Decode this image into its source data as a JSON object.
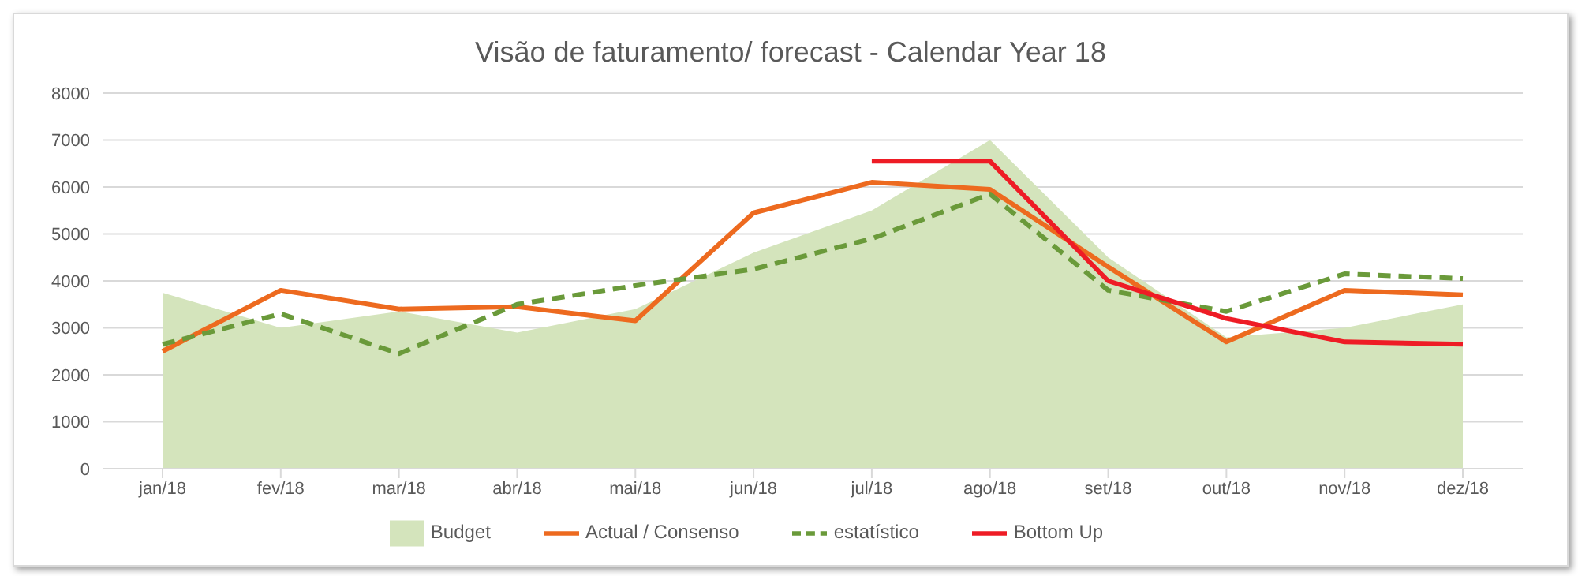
{
  "chart_data": {
    "type": "line",
    "title": "Visão de faturamento/ forecast - Calendar Year 18",
    "categories": [
      "jan/18",
      "fev/18",
      "mar/18",
      "abr/18",
      "mai/18",
      "jun/18",
      "jul/18",
      "ago/18",
      "set/18",
      "out/18",
      "nov/18",
      "dez/18"
    ],
    "series": [
      {
        "name": "Budget",
        "type": "area",
        "color": "#d4e4bc",
        "values": [
          3750,
          3000,
          3350,
          2900,
          3400,
          4600,
          5500,
          7000,
          4500,
          2800,
          3000,
          3500
        ]
      },
      {
        "name": "Actual / Consenso",
        "color": "#ed6a1f",
        "line_style": "solid",
        "values": [
          2500,
          3800,
          3400,
          3450,
          3150,
          5450,
          6100,
          5950,
          4300,
          2700,
          3800,
          3700
        ]
      },
      {
        "name": "estatístico",
        "color": "#6a9a3a",
        "line_style": "dashed",
        "values": [
          2650,
          3300,
          2450,
          3500,
          3900,
          4250,
          4900,
          5850,
          3800,
          3350,
          4150,
          4050
        ]
      },
      {
        "name": "Bottom Up",
        "color": "#ee1c25",
        "line_style": "solid",
        "values": [
          null,
          null,
          null,
          null,
          null,
          null,
          6550,
          6550,
          4000,
          3200,
          2700,
          2650
        ]
      }
    ],
    "ylim": [
      0,
      8000
    ],
    "yticks": [
      0,
      1000,
      2000,
      3000,
      4000,
      5000,
      6000,
      7000,
      8000
    ],
    "grid": "y",
    "legend": "bottom",
    "marker": "none"
  }
}
